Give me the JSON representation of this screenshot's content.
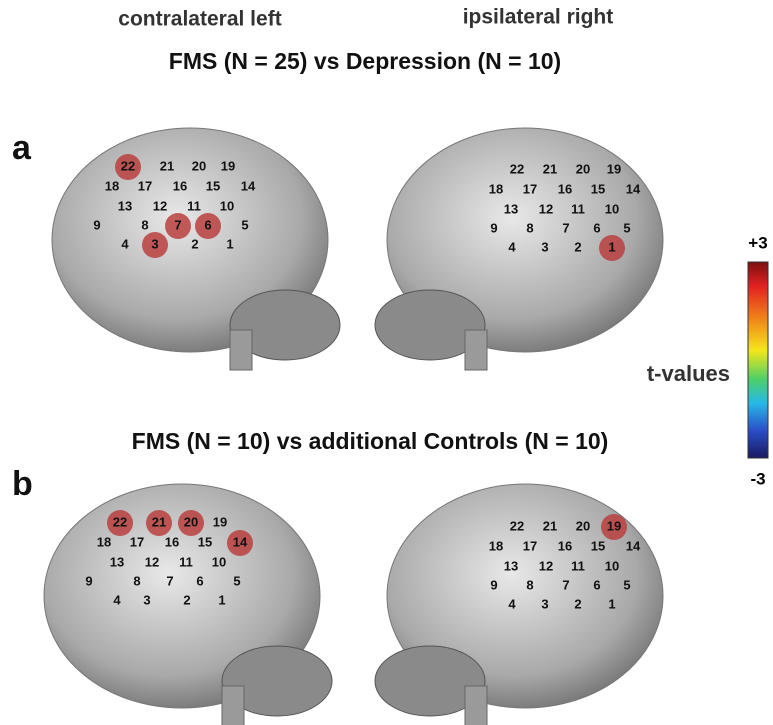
{
  "header": {
    "left_label": "contralateral left",
    "right_label": "ipsilateral right"
  },
  "panels": [
    {
      "letter": "a",
      "title": "FMS (N = 25) vs Depression (N = 10)",
      "left": {
        "channels": [
          {
            "label": "1"
          },
          {
            "label": "2"
          },
          {
            "label": "3",
            "active": true
          },
          {
            "label": "4"
          },
          {
            "label": "5"
          },
          {
            "label": "6",
            "active": true
          },
          {
            "label": "7",
            "active": true
          },
          {
            "label": "8"
          },
          {
            "label": "9"
          },
          {
            "label": "10"
          },
          {
            "label": "11"
          },
          {
            "label": "12"
          },
          {
            "label": "13"
          },
          {
            "label": "14"
          },
          {
            "label": "15"
          },
          {
            "label": "16"
          },
          {
            "label": "17"
          },
          {
            "label": "18"
          },
          {
            "label": "19"
          },
          {
            "label": "20"
          },
          {
            "label": "21"
          },
          {
            "label": "22",
            "active": true
          }
        ]
      },
      "right": {
        "channels": [
          {
            "label": "1",
            "active": true
          },
          {
            "label": "2"
          },
          {
            "label": "3"
          },
          {
            "label": "4"
          },
          {
            "label": "5"
          },
          {
            "label": "6"
          },
          {
            "label": "7"
          },
          {
            "label": "8"
          },
          {
            "label": "9"
          },
          {
            "label": "10"
          },
          {
            "label": "11"
          },
          {
            "label": "12"
          },
          {
            "label": "13"
          },
          {
            "label": "14"
          },
          {
            "label": "15"
          },
          {
            "label": "16"
          },
          {
            "label": "17"
          },
          {
            "label": "18"
          },
          {
            "label": "19"
          },
          {
            "label": "20"
          },
          {
            "label": "21"
          },
          {
            "label": "22"
          }
        ]
      }
    },
    {
      "letter": "b",
      "title": "FMS (N = 10) vs additional Controls (N = 10)",
      "left": {
        "channels": [
          {
            "label": "1"
          },
          {
            "label": "2"
          },
          {
            "label": "3"
          },
          {
            "label": "4"
          },
          {
            "label": "5"
          },
          {
            "label": "6"
          },
          {
            "label": "7"
          },
          {
            "label": "8"
          },
          {
            "label": "9"
          },
          {
            "label": "10"
          },
          {
            "label": "11"
          },
          {
            "label": "12"
          },
          {
            "label": "13"
          },
          {
            "label": "14",
            "active": true
          },
          {
            "label": "15"
          },
          {
            "label": "16"
          },
          {
            "label": "17"
          },
          {
            "label": "18"
          },
          {
            "label": "19"
          },
          {
            "label": "20",
            "active": true
          },
          {
            "label": "21",
            "active": true
          },
          {
            "label": "22",
            "active": true
          }
        ]
      },
      "right": {
        "channels": [
          {
            "label": "1"
          },
          {
            "label": "2"
          },
          {
            "label": "3"
          },
          {
            "label": "4"
          },
          {
            "label": "5"
          },
          {
            "label": "6"
          },
          {
            "label": "7"
          },
          {
            "label": "8"
          },
          {
            "label": "9"
          },
          {
            "label": "10"
          },
          {
            "label": "11"
          },
          {
            "label": "12"
          },
          {
            "label": "13"
          },
          {
            "label": "14"
          },
          {
            "label": "15"
          },
          {
            "label": "16"
          },
          {
            "label": "17"
          },
          {
            "label": "18"
          },
          {
            "label": "19",
            "active": true
          },
          {
            "label": "20"
          },
          {
            "label": "21"
          },
          {
            "label": "22"
          }
        ]
      }
    }
  ],
  "colorbar": {
    "max_label": "+3",
    "min_label": "-3",
    "label": "t-values"
  }
}
